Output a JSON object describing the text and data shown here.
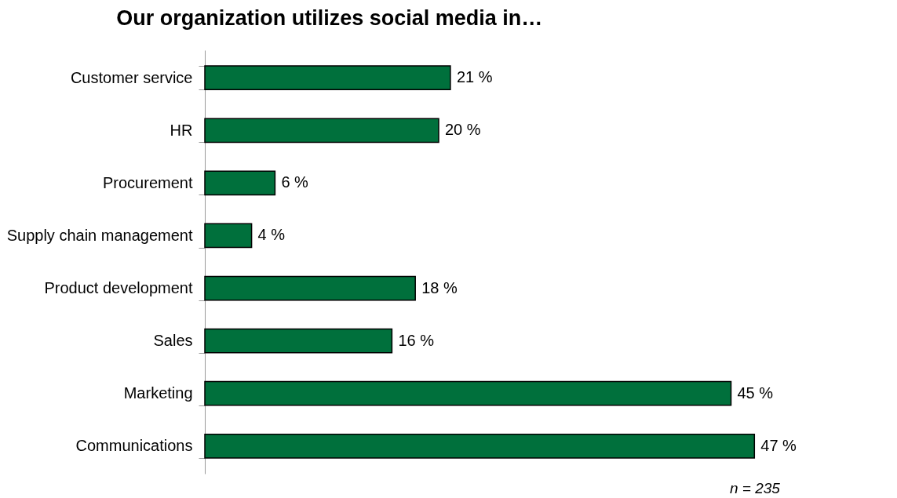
{
  "chart_data": {
    "type": "bar",
    "orientation": "horizontal",
    "title": "Our organization utilizes social media in…",
    "categories": [
      "Customer service",
      "HR",
      "Procurement",
      "Supply chain management",
      "Product development",
      "Sales",
      "Marketing",
      "Communications"
    ],
    "values": [
      21,
      20,
      6,
      4,
      18,
      16,
      45,
      47
    ],
    "value_labels": [
      "21 %",
      "20 %",
      "6 %",
      "4 %",
      "18 %",
      "16 %",
      "45 %",
      "47 %"
    ],
    "color": "#00703c",
    "annotations": [
      "n = 235"
    ],
    "grid": false
  }
}
